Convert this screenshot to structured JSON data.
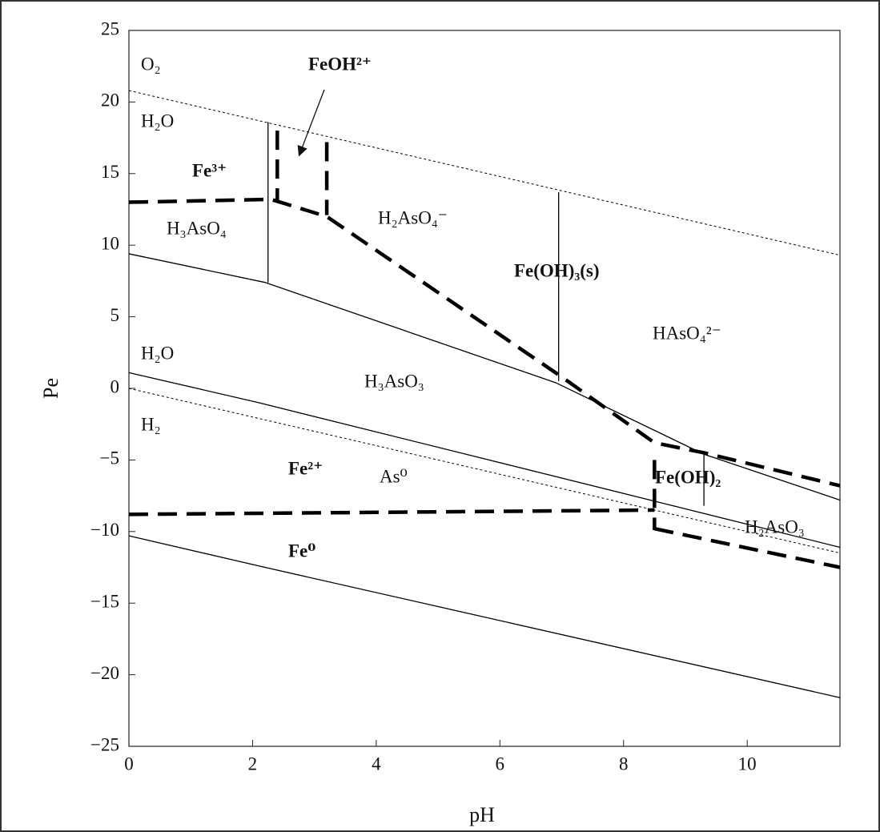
{
  "chart_data": {
    "type": "line",
    "xlabel": "pH",
    "ylabel": "Pe",
    "xlim": [
      0,
      11.5
    ],
    "ylim": [
      -25,
      25
    ],
    "xticks": [
      0,
      2,
      4,
      6,
      8,
      10
    ],
    "yticks": [
      {
        "value": -25,
        "label": "−25"
      },
      {
        "value": -20,
        "label": "−20"
      },
      {
        "value": -15,
        "label": "−15"
      },
      {
        "value": -10,
        "label": "−10"
      },
      {
        "value": -5,
        "label": "−5"
      },
      0,
      5,
      10,
      15,
      20,
      25
    ],
    "series": [
      {
        "style": "dotted",
        "color": "#000000",
        "x": [
          0,
          11.5
        ],
        "y": [
          20.8,
          9.3
        ]
      },
      {
        "style": "dotted",
        "color": "#000000",
        "x": [
          0,
          11.5
        ],
        "y": [
          0,
          -11.5
        ]
      },
      {
        "style": "solid",
        "color": "#000000",
        "x": [
          0,
          2.2,
          6.9,
          9.3,
          11.5
        ],
        "y": [
          9.4,
          7.4,
          0.4,
          -4.6,
          -7.8
        ]
      },
      {
        "style": "solid",
        "color": "#000000",
        "x": [
          2.25,
          2.25
        ],
        "y": [
          7.4,
          18.6
        ]
      },
      {
        "style": "solid",
        "color": "#000000",
        "x": [
          6.95,
          6.95
        ],
        "y": [
          0.5,
          13.7
        ]
      },
      {
        "style": "solid",
        "color": "#000000",
        "x": [
          0,
          2.1,
          11.5
        ],
        "y": [
          1.1,
          -1.0,
          -11.1
        ]
      },
      {
        "style": "solid",
        "color": "#000000",
        "x": [
          9.3,
          9.3
        ],
        "y": [
          -4.6,
          -8.2
        ]
      },
      {
        "style": "solid",
        "color": "#000000",
        "x": [
          0,
          2.2,
          11.5
        ],
        "y": [
          -10.3,
          -12.5,
          -21.6
        ]
      },
      {
        "style": "dashed",
        "color": "#000000",
        "x": [
          0,
          2.3,
          3.2,
          7.0,
          8.5,
          9.3,
          11.5
        ],
        "y": [
          13.0,
          13.2,
          12.0,
          0.8,
          -3.8,
          -4.5,
          -6.8
        ]
      },
      {
        "style": "dashed",
        "color": "#000000",
        "x": [
          2.4,
          2.4
        ],
        "y": [
          18.0,
          13.1
        ]
      },
      {
        "style": "dashed",
        "color": "#000000",
        "x": [
          3.2,
          3.2
        ],
        "y": [
          17.2,
          12.1
        ]
      },
      {
        "style": "dashed",
        "color": "#000000",
        "x": [
          0,
          8.5
        ],
        "y": [
          -8.8,
          -8.5
        ]
      },
      {
        "style": "dashed",
        "color": "#000000",
        "x": [
          8.5,
          8.5
        ],
        "y": [
          -5.0,
          -9.9
        ]
      },
      {
        "style": "dashed",
        "color": "#000000",
        "x": [
          8.5,
          11.5
        ],
        "y": [
          -9.8,
          -12.5
        ]
      }
    ],
    "annotations": [
      {
        "text": "O₂",
        "bold": false
      },
      {
        "text": "FeOH²⁺",
        "bold": true
      },
      {
        "text": "H₂O",
        "bold": false
      },
      {
        "text": "Fe³⁺",
        "bold": true
      },
      {
        "text": "H₃AsO₄",
        "bold": false
      },
      {
        "text": "H₂AsO₄⁻",
        "bold": false
      },
      {
        "text": "Fe(OH)₃(s)",
        "bold": true
      },
      {
        "text": "HAsO₄²⁻",
        "bold": false
      },
      {
        "text": "H₂O",
        "bold": false
      },
      {
        "text": "H₃AsO₃",
        "bold": false
      },
      {
        "text": "H₂",
        "bold": false
      },
      {
        "text": "Fe²⁺",
        "bold": true
      },
      {
        "text": "As⁰",
        "bold": false
      },
      {
        "text": "Fe(OH)₂",
        "bold": true
      },
      {
        "text": "H₂AsO₃",
        "bold": false
      },
      {
        "text": "Fe⁰",
        "bold": true
      }
    ]
  }
}
